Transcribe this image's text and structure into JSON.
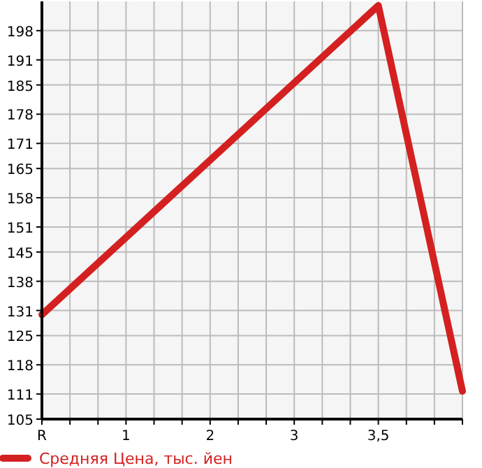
{
  "chart_data": {
    "type": "line",
    "categories": [
      "R",
      null,
      null,
      "1",
      null,
      null,
      "2",
      null,
      null,
      "3",
      null,
      null,
      "3,5",
      null,
      null,
      null
    ],
    "series": [
      {
        "name": "Средняя Цена, тыс. йен",
        "color": "#d42020",
        "values": [
          130,
          null,
          null,
          null,
          null,
          null,
          null,
          null,
          null,
          null,
          null,
          null,
          204,
          null,
          null,
          111.7
        ]
      }
    ],
    "ylim": [
      105,
      205
    ],
    "yticks": [
      105,
      111,
      118,
      125,
      131,
      138,
      145,
      151,
      158,
      165,
      171,
      178,
      185,
      191,
      198
    ],
    "grid": true,
    "legend": "bottom",
    "marker": "none",
    "line_style": "solid"
  }
}
